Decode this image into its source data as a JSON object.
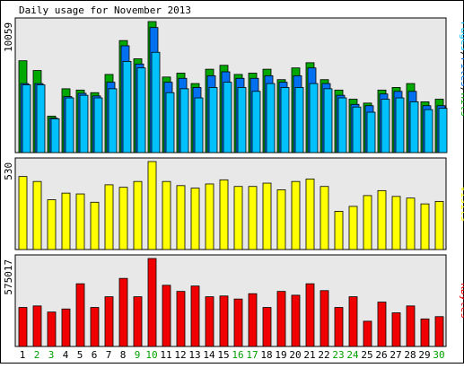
{
  "title": "Daily usage for November 2013",
  "colors": {
    "hits": "#00a800",
    "files": "#0070f0",
    "pages": "#00c0ff",
    "visits": "#ffff00",
    "kbytes": "#f00000",
    "panel_bg": "#e8e8e8",
    "weekday_label": "#000000",
    "weekend_label": "#00a000"
  },
  "chart_data": [
    {
      "type": "bar",
      "panel": "top",
      "y_tick_label": "10059",
      "ylim": [
        0,
        10059
      ],
      "legend_vertical": [
        "Pages",
        "/",
        "Files",
        "/",
        "Hits"
      ],
      "categories": [
        "1",
        "2",
        "3",
        "4",
        "5",
        "6",
        "7",
        "8",
        "9",
        "10",
        "11",
        "12",
        "13",
        "14",
        "15",
        "16",
        "17",
        "18",
        "19",
        "20",
        "21",
        "22",
        "23",
        "24",
        "25",
        "26",
        "27",
        "28",
        "29",
        "30"
      ],
      "series": [
        {
          "name": "Hits",
          "values": [
            7050,
            6300,
            2800,
            4900,
            4800,
            4600,
            6000,
            8600,
            7200,
            10059,
            5800,
            6100,
            5300,
            6400,
            6700,
            6000,
            6100,
            6400,
            5600,
            6500,
            6900,
            5600,
            4800,
            4100,
            3800,
            4800,
            5000,
            5300,
            3900,
            4100
          ]
        },
        {
          "name": "Files",
          "values": [
            5300,
            5300,
            2650,
            4300,
            4550,
            4350,
            5400,
            8200,
            6800,
            9600,
            5400,
            5700,
            5000,
            5900,
            6200,
            5700,
            5700,
            5900,
            5400,
            5900,
            6500,
            5300,
            4400,
            3700,
            3600,
            4500,
            4700,
            4700,
            3600,
            3600
          ]
        },
        {
          "name": "Pages",
          "values": [
            5200,
            5200,
            2600,
            4200,
            4400,
            4200,
            4900,
            7000,
            6500,
            7700,
            4600,
            4900,
            4200,
            5000,
            5400,
            5000,
            4700,
            5300,
            5000,
            5000,
            5300,
            4900,
            4200,
            3500,
            3100,
            4100,
            4200,
            3900,
            3300,
            3400
          ]
        }
      ]
    },
    {
      "type": "bar",
      "panel": "middle",
      "y_tick_label": "530",
      "ylim": [
        0,
        530
      ],
      "legend_vertical": [
        "Visits"
      ],
      "categories": [
        "1",
        "2",
        "3",
        "4",
        "5",
        "6",
        "7",
        "8",
        "9",
        "10",
        "11",
        "12",
        "13",
        "14",
        "15",
        "16",
        "17",
        "18",
        "19",
        "20",
        "21",
        "22",
        "23",
        "24",
        "25",
        "26",
        "27",
        "28",
        "29",
        "30"
      ],
      "series": [
        {
          "name": "Visits",
          "values": [
            440,
            410,
            300,
            340,
            335,
            285,
            390,
            375,
            410,
            530,
            410,
            385,
            370,
            395,
            420,
            380,
            380,
            400,
            360,
            410,
            425,
            380,
            230,
            260,
            325,
            355,
            320,
            310,
            275,
            290
          ]
        }
      ]
    },
    {
      "type": "bar",
      "panel": "bottom",
      "y_tick_label": "575017",
      "ylim": [
        0,
        575017
      ],
      "legend_vertical": [
        "KBytes"
      ],
      "categories": [
        "1",
        "2",
        "3",
        "4",
        "5",
        "6",
        "7",
        "8",
        "9",
        "10",
        "11",
        "12",
        "13",
        "14",
        "15",
        "16",
        "17",
        "18",
        "19",
        "20",
        "21",
        "22",
        "23",
        "24",
        "25",
        "26",
        "27",
        "28",
        "29",
        "30"
      ],
      "series": [
        {
          "name": "KBytes",
          "values": [
            255000,
            265000,
            225000,
            245000,
            410000,
            255000,
            325000,
            445000,
            325000,
            575017,
            400000,
            360000,
            395000,
            325000,
            330000,
            310000,
            345000,
            255000,
            360000,
            335000,
            410000,
            365000,
            255000,
            325000,
            165000,
            290000,
            220000,
            265000,
            180000,
            195000
          ]
        }
      ]
    }
  ],
  "x_labels": [
    {
      "t": "1",
      "w": false
    },
    {
      "t": "2",
      "w": true
    },
    {
      "t": "3",
      "w": true
    },
    {
      "t": "4",
      "w": false
    },
    {
      "t": "5",
      "w": false
    },
    {
      "t": "6",
      "w": false
    },
    {
      "t": "7",
      "w": false
    },
    {
      "t": "8",
      "w": false
    },
    {
      "t": "9",
      "w": true
    },
    {
      "t": "10",
      "w": true
    },
    {
      "t": "11",
      "w": false
    },
    {
      "t": "12",
      "w": false
    },
    {
      "t": "13",
      "w": false
    },
    {
      "t": "14",
      "w": false
    },
    {
      "t": "15",
      "w": false
    },
    {
      "t": "16",
      "w": true
    },
    {
      "t": "17",
      "w": true
    },
    {
      "t": "18",
      "w": false
    },
    {
      "t": "19",
      "w": false
    },
    {
      "t": "20",
      "w": false
    },
    {
      "t": "21",
      "w": false
    },
    {
      "t": "22",
      "w": false
    },
    {
      "t": "23",
      "w": true
    },
    {
      "t": "24",
      "w": true
    },
    {
      "t": "25",
      "w": false
    },
    {
      "t": "26",
      "w": false
    },
    {
      "t": "27",
      "w": false
    },
    {
      "t": "28",
      "w": false
    },
    {
      "t": "29",
      "w": false
    },
    {
      "t": "30",
      "w": true
    }
  ]
}
